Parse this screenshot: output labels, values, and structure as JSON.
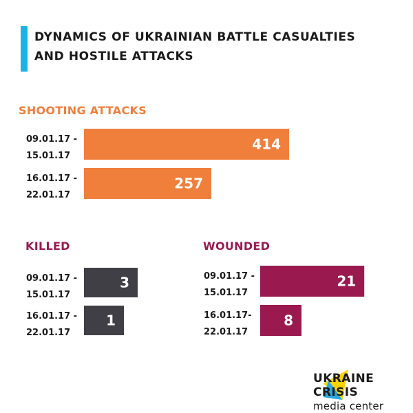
{
  "header": {
    "title_line1": "DYNAMICS OF UKRAINIAN BATTLE CASUALTIES",
    "title_line2": "AND HOSTILE ATTACKS"
  },
  "colors": {
    "accent_bar": "#1ab3e6",
    "shooting": "#f07f3c",
    "killed": "#3f3f45",
    "wounded": "#9a1a50",
    "logo_yellow": "#ffd200",
    "logo_blue": "#27a9e1"
  },
  "chart_data": [
    {
      "type": "bar",
      "orientation": "horizontal",
      "title": "SHOOTING ATTACKS",
      "categories": [
        "09.01.17 -\n15.01.17",
        "16.01.17 -\n22.01.17"
      ],
      "values": [
        414,
        257
      ]
    },
    {
      "type": "bar",
      "orientation": "horizontal",
      "title": "KILLED",
      "categories": [
        "09.01.17 -\n15.01.17",
        "16.01.17 -\n22.01.17"
      ],
      "values": [
        3,
        1
      ]
    },
    {
      "type": "bar",
      "orientation": "horizontal",
      "title": "WOUNDED",
      "categories": [
        "09.01.17 -\n15.01.17",
        "16.01.17-\n22.01.17"
      ],
      "values": [
        21,
        8
      ]
    }
  ],
  "logo": {
    "name": "UKRAINE CRISIS",
    "sub": "media center"
  }
}
